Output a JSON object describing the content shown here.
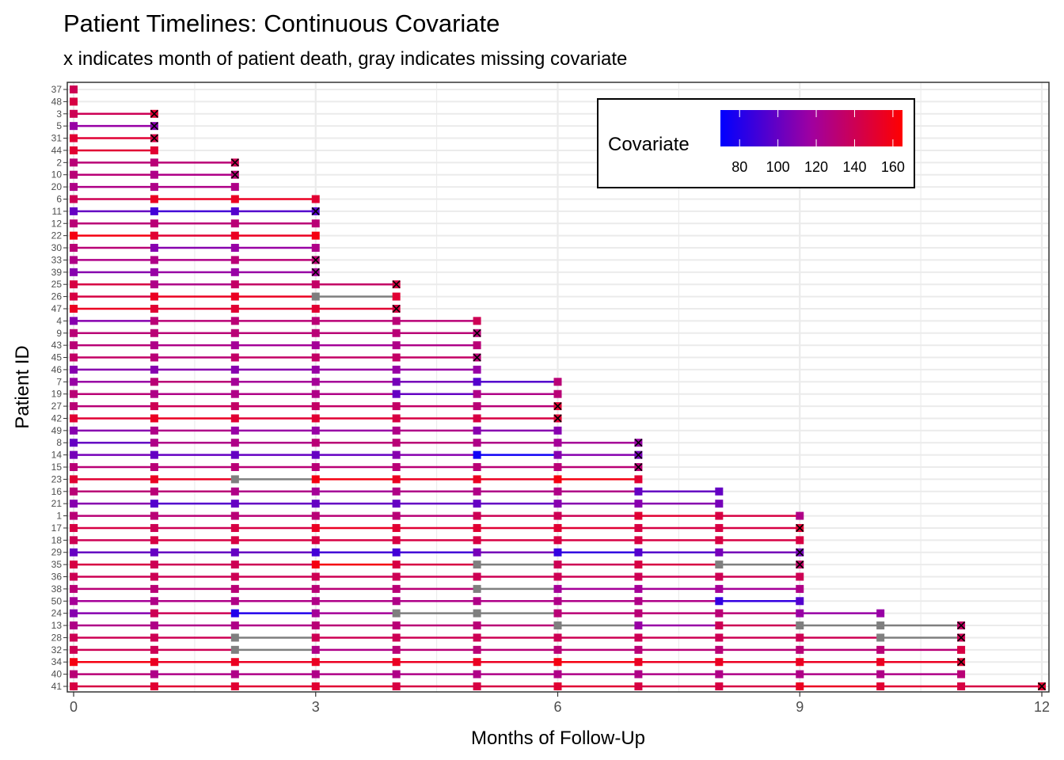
{
  "chart_data": {
    "type": "timeline",
    "title": "Patient Timelines: Continuous Covariate",
    "subtitle": "x indicates month of patient death, gray indicates missing covariate",
    "xlabel": "Months of Follow-Up",
    "ylabel": "Patient ID",
    "x_ticks": [
      0,
      3,
      6,
      9,
      12
    ],
    "xlim": [
      0,
      12
    ],
    "grid": true,
    "legend": {
      "title": "Covariate",
      "position": "top-right",
      "min": 70,
      "max": 165,
      "ticks": [
        80,
        100,
        120,
        140,
        160
      ],
      "low_color": "#0000ff",
      "high_color": "#ff0000",
      "missing_color": "#7f7f7f",
      "death_marker_color": "#000000"
    },
    "patients": [
      {
        "id": "37",
        "died": false,
        "values": [
          140
        ]
      },
      {
        "id": "48",
        "died": false,
        "values": [
          145
        ]
      },
      {
        "id": "3",
        "died": true,
        "values": [
          140,
          150
        ]
      },
      {
        "id": "5",
        "died": true,
        "values": [
          115,
          110
        ]
      },
      {
        "id": "31",
        "died": true,
        "values": [
          150,
          145
        ]
      },
      {
        "id": "44",
        "died": false,
        "values": [
          150,
          150
        ]
      },
      {
        "id": "2",
        "died": true,
        "values": [
          130,
          130,
          140
        ]
      },
      {
        "id": "10",
        "died": true,
        "values": [
          130,
          125,
          130
        ]
      },
      {
        "id": "20",
        "died": false,
        "values": [
          125,
          125,
          125
        ]
      },
      {
        "id": "6",
        "died": false,
        "values": [
          140,
          155,
          155,
          150
        ]
      },
      {
        "id": "11",
        "died": true,
        "values": [
          100,
          90,
          95,
          95
        ]
      },
      {
        "id": "12",
        "died": false,
        "values": [
          130,
          130,
          130,
          130
        ]
      },
      {
        "id": "22",
        "died": false,
        "values": [
          160,
          150,
          155,
          160
        ]
      },
      {
        "id": "30",
        "died": false,
        "values": [
          130,
          110,
          115,
          125
        ]
      },
      {
        "id": "33",
        "died": true,
        "values": [
          125,
          125,
          130,
          130
        ]
      },
      {
        "id": "39",
        "died": true,
        "values": [
          110,
          115,
          115,
          120
        ]
      },
      {
        "id": "25",
        "died": true,
        "values": [
          145,
          125,
          135,
          135,
          145
        ]
      },
      {
        "id": "26",
        "died": false,
        "values": [
          145,
          155,
          155,
          null,
          150
        ]
      },
      {
        "id": "47",
        "died": true,
        "values": [
          155,
          150,
          150,
          150,
          145
        ]
      },
      {
        "id": "4",
        "died": false,
        "values": [
          110,
          130,
          130,
          130,
          130,
          140
        ]
      },
      {
        "id": "9",
        "died": true,
        "values": [
          130,
          130,
          130,
          130,
          130,
          130
        ]
      },
      {
        "id": "43",
        "died": false,
        "values": [
          130,
          125,
          120,
          120,
          125,
          130
        ]
      },
      {
        "id": "45",
        "died": true,
        "values": [
          135,
          130,
          135,
          135,
          135,
          130
        ]
      },
      {
        "id": "46",
        "died": false,
        "values": [
          110,
          110,
          110,
          115,
          115,
          115
        ]
      },
      {
        "id": "7",
        "died": false,
        "values": [
          115,
          130,
          120,
          120,
          105,
          95,
          130
        ]
      },
      {
        "id": "19",
        "died": false,
        "values": [
          130,
          125,
          125,
          125,
          100,
          125,
          130
        ]
      },
      {
        "id": "27",
        "died": true,
        "values": [
          130,
          140,
          135,
          135,
          135,
          130,
          150
        ]
      },
      {
        "id": "42",
        "died": true,
        "values": [
          150,
          155,
          150,
          150,
          145,
          145,
          150
        ]
      },
      {
        "id": "49",
        "died": false,
        "values": [
          110,
          125,
          115,
          115,
          125,
          110,
          110
        ]
      },
      {
        "id": "8",
        "died": true,
        "values": [
          100,
          125,
          125,
          130,
          130,
          125,
          120,
          115
        ]
      },
      {
        "id": "14",
        "died": true,
        "values": [
          105,
          100,
          100,
          100,
          110,
          75,
          110,
          105
        ]
      },
      {
        "id": "15",
        "died": true,
        "values": [
          130,
          130,
          130,
          130,
          130,
          130,
          130,
          130
        ]
      },
      {
        "id": "23",
        "died": false,
        "values": [
          150,
          155,
          null,
          160,
          155,
          155,
          160,
          150
        ]
      },
      {
        "id": "16",
        "died": false,
        "values": [
          130,
          130,
          125,
          120,
          125,
          125,
          125,
          100,
          100
        ]
      },
      {
        "id": "21",
        "died": false,
        "values": [
          110,
          95,
          100,
          100,
          100,
          100,
          110,
          110,
          105
        ]
      },
      {
        "id": "1",
        "died": false,
        "values": [
          130,
          130,
          130,
          130,
          130,
          140,
          140,
          150,
          145,
          125
        ]
      },
      {
        "id": "17",
        "died": true,
        "values": [
          145,
          140,
          145,
          155,
          150,
          150,
          150,
          145,
          145,
          150
        ]
      },
      {
        "id": "18",
        "died": false,
        "values": [
          140,
          145,
          145,
          145,
          145,
          145,
          145,
          145,
          145,
          145
        ]
      },
      {
        "id": "29",
        "died": true,
        "values": [
          100,
          100,
          100,
          90,
          90,
          105,
          85,
          95,
          105,
          105
        ]
      },
      {
        "id": "35",
        "died": true,
        "values": [
          145,
          140,
          140,
          160,
          145,
          null,
          140,
          145,
          null,
          135
        ]
      },
      {
        "id": "36",
        "died": false,
        "values": [
          140,
          140,
          140,
          140,
          140,
          140,
          140,
          140,
          140,
          140
        ]
      },
      {
        "id": "38",
        "died": false,
        "values": [
          130,
          130,
          130,
          130,
          130,
          null,
          120,
          120,
          120,
          125
        ]
      },
      {
        "id": "50",
        "died": false,
        "values": [
          120,
          125,
          125,
          125,
          125,
          125,
          125,
          125,
          85,
          95
        ]
      },
      {
        "id": "24",
        "died": false,
        "values": [
          110,
          140,
          80,
          120,
          null,
          null,
          130,
          130,
          130,
          115,
          115
        ]
      },
      {
        "id": "13",
        "died": true,
        "values": [
          125,
          125,
          125,
          130,
          130,
          130,
          null,
          115,
          140,
          null,
          null,
          135
        ]
      },
      {
        "id": "28",
        "died": true,
        "values": [
          140,
          140,
          null,
          140,
          140,
          140,
          140,
          140,
          140,
          140,
          null,
          140
        ]
      },
      {
        "id": "32",
        "died": false,
        "values": [
          140,
          140,
          null,
          125,
          130,
          130,
          130,
          130,
          130,
          130,
          130,
          145
        ]
      },
      {
        "id": "34",
        "died": true,
        "values": [
          160,
          155,
          155,
          155,
          155,
          155,
          160,
          155,
          155,
          155,
          155,
          150
        ]
      },
      {
        "id": "40",
        "died": false,
        "values": [
          130,
          125,
          125,
          125,
          125,
          125,
          125,
          125,
          125,
          125,
          125,
          130
        ]
      },
      {
        "id": "41",
        "died": true,
        "values": [
          145,
          150,
          150,
          150,
          145,
          145,
          150,
          145,
          145,
          155,
          150,
          145,
          150
        ]
      }
    ]
  }
}
